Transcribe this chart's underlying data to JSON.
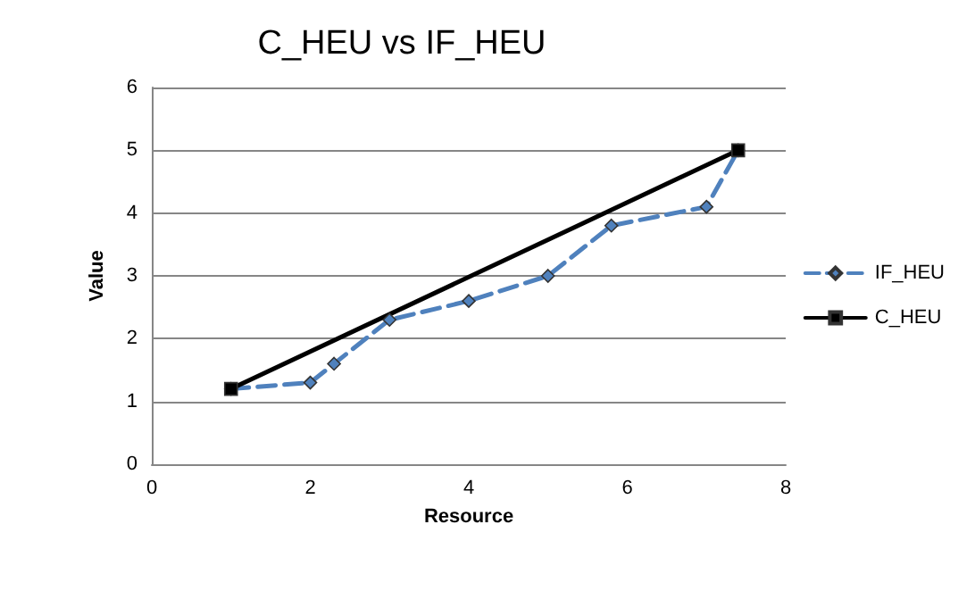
{
  "chart_data": {
    "type": "line",
    "title": "C_HEU vs IF_HEU",
    "xlabel": "Resource",
    "ylabel": "Value",
    "xlim": [
      0,
      8
    ],
    "xticks": [
      0,
      2,
      4,
      6,
      8
    ],
    "ylim": [
      0,
      6
    ],
    "yticks": [
      0,
      1,
      2,
      3,
      4,
      5,
      6
    ],
    "grid": "y",
    "legend": "right",
    "series": [
      {
        "name": "IF_HEU",
        "color": "#4f81bd",
        "marker": "diamond",
        "line_style": "dashed",
        "x": [
          1,
          2,
          2.3,
          3,
          4,
          5,
          5.8,
          7,
          7.4
        ],
        "values": [
          1.2,
          1.3,
          1.6,
          2.3,
          2.6,
          3.0,
          3.8,
          4.1,
          5
        ]
      },
      {
        "name": "C_HEU",
        "color": "#000000",
        "marker": "square",
        "line_style": "solid",
        "x": [
          1,
          7.4
        ],
        "values": [
          1.2,
          5
        ]
      }
    ]
  }
}
